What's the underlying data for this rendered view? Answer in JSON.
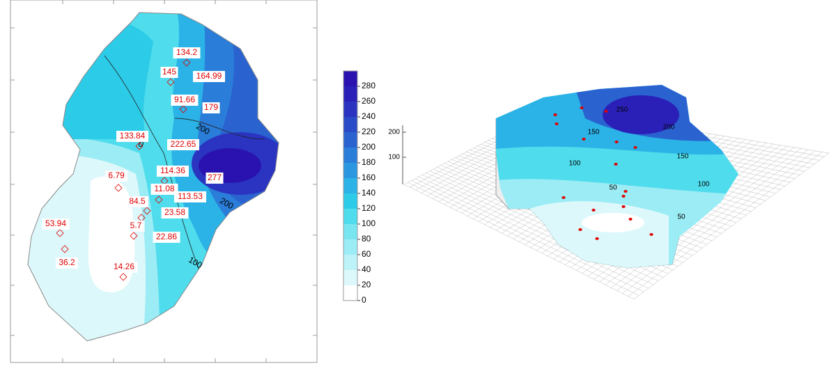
{
  "chart_data": [
    {
      "type": "contour",
      "values": [
        134.2,
        145,
        164.99,
        91.66,
        179,
        133.84,
        222.65,
        114.36,
        277,
        6.79,
        11.08,
        113.53,
        84.5,
        23.58,
        5.7,
        22.86,
        53.94,
        36.2,
        14.26
      ],
      "clim": [
        0,
        300
      ],
      "colorbar_ticks": [
        0,
        20,
        40,
        60,
        80,
        100,
        120,
        140,
        160,
        180,
        200,
        220,
        240,
        260,
        280
      ],
      "colors": [
        "#ffffff",
        "#dcf8fb",
        "#bcf2f8",
        "#9becf5",
        "#78e5f1",
        "#4fdcec",
        "#2ccbe8",
        "#2bb2e6",
        "#2a97e0",
        "#2a7dd8",
        "#2a63d0",
        "#2a4bc8",
        "#2a34c0",
        "#2a20b8",
        "#2a12b0"
      ],
      "contour_labels": [
        0,
        200,
        200,
        100
      ],
      "marker_color": "#e00000"
    },
    {
      "type": "surface3d",
      "zticks": [
        100,
        200
      ],
      "contour_labels": [
        100,
        150,
        100,
        50,
        50,
        150,
        200,
        250
      ],
      "marker_color": "#e00000"
    }
  ]
}
